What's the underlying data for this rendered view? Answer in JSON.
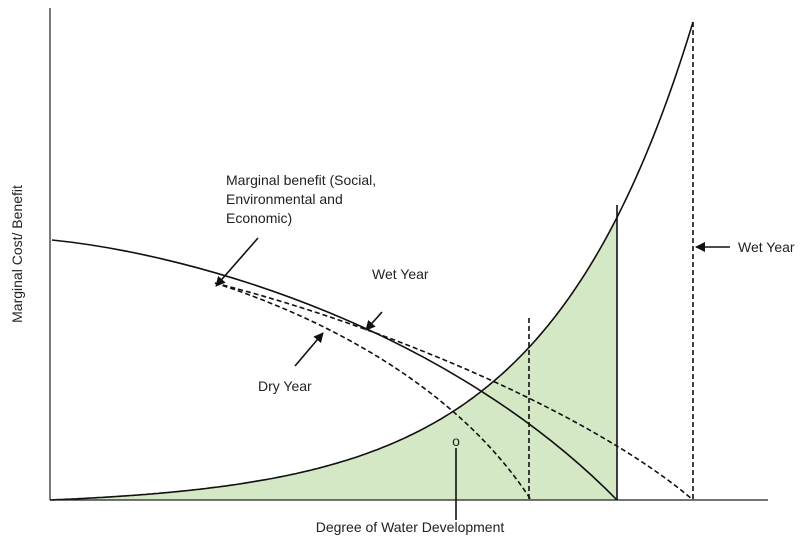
{
  "y_axis_label": "Marginal Cost/ Benefit",
  "x_axis_label": "Degree of Water Development",
  "annotations": {
    "marginal_benefit": [
      "Marginal benefit (Social,",
      "Environmental and",
      "Economic)"
    ],
    "wet_year_curve": "Wet Year",
    "dry_year_curve": "Dry Year",
    "wet_year_line": "Wet Year",
    "point_label": "o"
  }
}
